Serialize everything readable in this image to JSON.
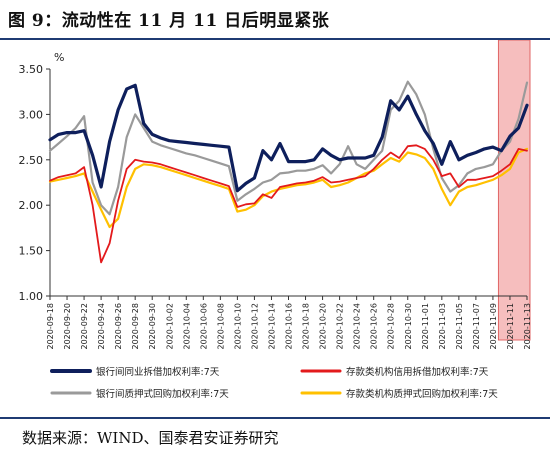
{
  "title": "图 9：流动性在 11 月 11 日后明显紧张",
  "source": "数据来源：WIND、国泰君安证券研究",
  "chart_data": {
    "type": "line",
    "ylabel": "%",
    "ylim": [
      1.0,
      3.5
    ],
    "yticks": [
      "1.00",
      "1.50",
      "2.00",
      "2.50",
      "3.00",
      "3.50"
    ],
    "xticks": [
      "2020-09-18",
      "2020-09-20",
      "2020-09-22",
      "2020-09-24",
      "2020-09-26",
      "2020-09-28",
      "2020-09-30",
      "2020-10-02",
      "2020-10-04",
      "2020-10-06",
      "2020-10-08",
      "2020-10-10",
      "2020-10-12",
      "2020-10-14",
      "2020-10-16",
      "2020-10-18",
      "2020-10-20",
      "2020-10-22",
      "2020-10-24",
      "2020-10-26",
      "2020-10-28",
      "2020-10-30",
      "2020-11-01",
      "2020-11-03",
      "2020-11-05",
      "2020-11-07",
      "2020-11-09",
      "2020-11-11",
      "2020-11-13"
    ],
    "x": [
      "2020-09-18",
      "2020-09-19",
      "2020-09-20",
      "2020-09-21",
      "2020-09-22",
      "2020-09-23",
      "2020-09-24",
      "2020-09-25",
      "2020-09-26",
      "2020-09-27",
      "2020-09-28",
      "2020-09-29",
      "2020-09-30",
      "2020-10-01",
      "2020-10-02",
      "2020-10-03",
      "2020-10-04",
      "2020-10-05",
      "2020-10-06",
      "2020-10-07",
      "2020-10-08",
      "2020-10-09",
      "2020-10-10",
      "2020-10-11",
      "2020-10-12",
      "2020-10-13",
      "2020-10-14",
      "2020-10-15",
      "2020-10-16",
      "2020-10-17",
      "2020-10-18",
      "2020-10-19",
      "2020-10-20",
      "2020-10-21",
      "2020-10-22",
      "2020-10-23",
      "2020-10-24",
      "2020-10-25",
      "2020-10-26",
      "2020-10-27",
      "2020-10-28",
      "2020-10-29",
      "2020-10-30",
      "2020-10-31",
      "2020-11-01",
      "2020-11-02",
      "2020-11-03",
      "2020-11-04",
      "2020-11-05",
      "2020-11-06",
      "2020-11-07",
      "2020-11-08",
      "2020-11-09",
      "2020-11-10",
      "2020-11-11",
      "2020-11-12",
      "2020-11-13"
    ],
    "highlight": {
      "from": "2020-11-10",
      "to": "2020-11-13",
      "color": "#f4b3b3"
    },
    "series": [
      {
        "name": "银行间同业拆借加权利率:7天",
        "color": "#0e1f5c",
        "width": 3.2,
        "values": [
          2.72,
          2.78,
          2.8,
          2.8,
          2.82,
          2.55,
          2.2,
          2.7,
          3.05,
          3.28,
          3.32,
          2.9,
          2.78,
          2.74,
          2.71,
          2.7,
          2.69,
          2.68,
          2.67,
          2.66,
          2.65,
          2.64,
          2.16,
          2.24,
          2.3,
          2.6,
          2.5,
          2.68,
          2.48,
          2.48,
          2.48,
          2.5,
          2.62,
          2.55,
          2.5,
          2.52,
          2.52,
          2.52,
          2.55,
          2.75,
          3.15,
          3.05,
          3.2,
          3.0,
          2.82,
          2.68,
          2.45,
          2.7,
          2.5,
          2.55,
          2.58,
          2.62,
          2.64,
          2.6,
          2.76,
          2.85,
          3.1
        ]
      },
      {
        "name": "存款类机构信用拆借加权利率:7天",
        "color": "#e31a1c",
        "width": 1.8,
        "values": [
          2.27,
          2.31,
          2.33,
          2.35,
          2.42,
          2.0,
          1.37,
          1.58,
          2.05,
          2.4,
          2.5,
          2.48,
          2.47,
          2.45,
          2.42,
          2.39,
          2.36,
          2.33,
          2.3,
          2.27,
          2.24,
          2.21,
          1.98,
          2.01,
          2.02,
          2.12,
          2.08,
          2.2,
          2.22,
          2.24,
          2.25,
          2.27,
          2.31,
          2.25,
          2.26,
          2.28,
          2.3,
          2.32,
          2.4,
          2.5,
          2.58,
          2.52,
          2.65,
          2.66,
          2.62,
          2.5,
          2.32,
          2.35,
          2.2,
          2.28,
          2.28,
          2.3,
          2.32,
          2.38,
          2.45,
          2.62,
          2.6
        ]
      },
      {
        "name": "银行间质押式回购加权利率:7天",
        "color": "#9a9a9a",
        "width": 2.2,
        "values": [
          2.6,
          2.68,
          2.76,
          2.85,
          2.98,
          2.25,
          2.0,
          1.9,
          2.2,
          2.75,
          3.0,
          2.85,
          2.7,
          2.66,
          2.63,
          2.6,
          2.57,
          2.55,
          2.52,
          2.49,
          2.46,
          2.43,
          2.05,
          2.12,
          2.18,
          2.25,
          2.28,
          2.35,
          2.36,
          2.38,
          2.38,
          2.4,
          2.44,
          2.35,
          2.45,
          2.65,
          2.45,
          2.4,
          2.5,
          2.6,
          3.05,
          3.15,
          3.36,
          3.22,
          3.0,
          2.62,
          2.3,
          2.15,
          2.22,
          2.35,
          2.4,
          2.42,
          2.45,
          2.6,
          2.7,
          2.95,
          3.35
        ]
      },
      {
        "name": "存款类机构质押式回购加权利率:7天",
        "color": "#ffc000",
        "width": 2.2,
        "values": [
          2.26,
          2.28,
          2.3,
          2.32,
          2.35,
          2.15,
          1.95,
          1.76,
          1.85,
          2.2,
          2.4,
          2.45,
          2.44,
          2.42,
          2.39,
          2.36,
          2.33,
          2.3,
          2.27,
          2.24,
          2.21,
          2.18,
          1.93,
          1.95,
          2.0,
          2.1,
          2.15,
          2.18,
          2.2,
          2.22,
          2.23,
          2.25,
          2.28,
          2.2,
          2.22,
          2.25,
          2.3,
          2.35,
          2.38,
          2.45,
          2.52,
          2.48,
          2.58,
          2.56,
          2.52,
          2.4,
          2.18,
          2.0,
          2.15,
          2.2,
          2.22,
          2.25,
          2.28,
          2.33,
          2.4,
          2.58,
          2.62
        ]
      }
    ]
  }
}
